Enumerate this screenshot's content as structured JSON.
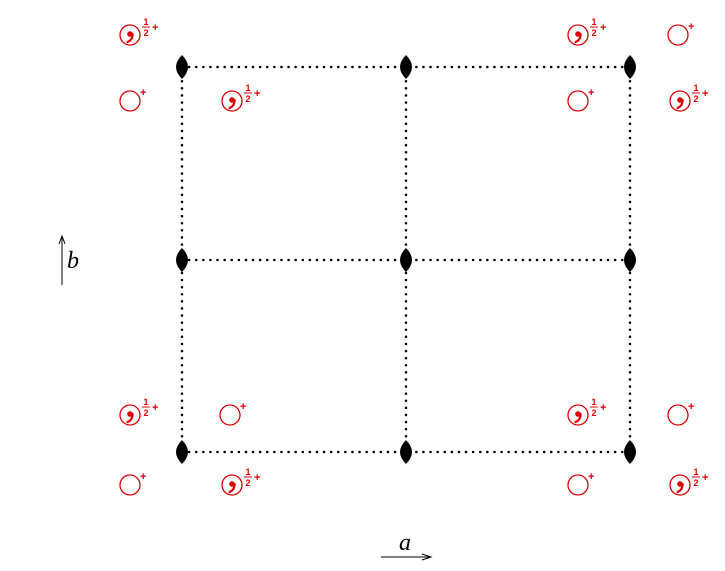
{
  "diagram": {
    "colors": {
      "line": "#000000",
      "symbol": "#e00000"
    },
    "axis_a_label": "a",
    "axis_b_label": "b",
    "frac_num": "1",
    "frac_den": "2",
    "plus": "+",
    "icons": {
      "axis": "arrow-icon",
      "twofold_axis": "twofold-axis-icon",
      "atom_plain": "circle-icon",
      "atom_enantiomer": "circle-comma-icon"
    }
  }
}
